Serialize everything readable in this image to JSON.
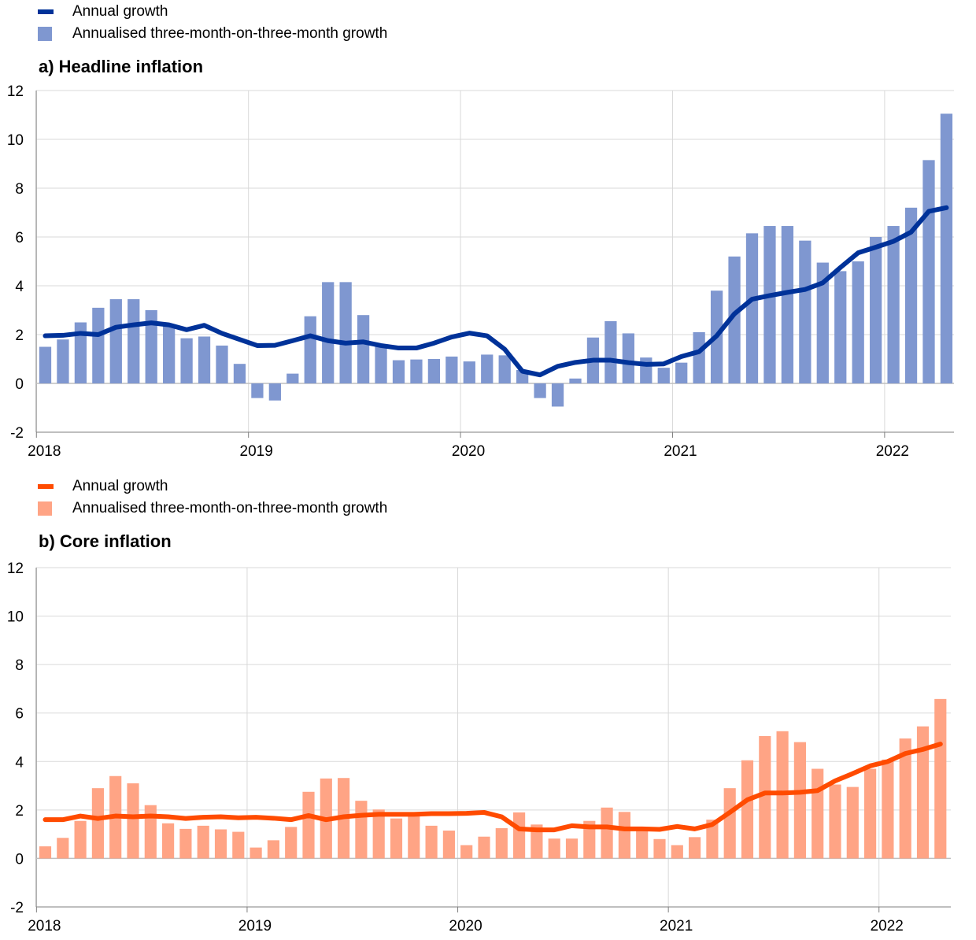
{
  "colors": {
    "headline_line": "#003299",
    "headline_bar": "#7f97d0",
    "core_line": "#ff4b00",
    "core_bar": "#ffa485",
    "grid": "#d9d9d9"
  },
  "chart_data": [
    {
      "type": "bar+line",
      "title": "a) Headline inflation",
      "legend": [
        "Annual growth",
        "Annualised three-month-on-three-month growth"
      ],
      "x_tick_labels": [
        "2018",
        "2019",
        "2020",
        "2021",
        "2022"
      ],
      "ylim": [
        -2,
        12
      ],
      "y_ticks": [
        -2,
        0,
        2,
        4,
        6,
        8,
        10,
        12
      ],
      "grid": true,
      "start_month": "2018-01",
      "series": [
        {
          "name": "Annual growth",
          "type": "line",
          "values": [
            1.95,
            1.97,
            2.05,
            2.0,
            2.3,
            2.4,
            2.48,
            2.4,
            2.2,
            2.38,
            2.05,
            1.8,
            1.55,
            1.56,
            1.75,
            1.95,
            1.75,
            1.65,
            1.7,
            1.55,
            1.45,
            1.45,
            1.65,
            1.9,
            2.06,
            1.95,
            1.4,
            0.5,
            0.35,
            0.7,
            0.86,
            0.95,
            0.95,
            0.85,
            0.78,
            0.8,
            1.1,
            1.3,
            1.95,
            2.85,
            3.45,
            3.6,
            3.73,
            3.85,
            4.12,
            4.75,
            5.35,
            5.58,
            5.82,
            6.2,
            7.05,
            7.2
          ]
        },
        {
          "name": "Annualised three-month-on-three-month growth",
          "type": "bar",
          "values": [
            1.5,
            1.8,
            2.5,
            3.1,
            3.45,
            3.45,
            3.0,
            2.35,
            1.85,
            1.92,
            1.55,
            0.8,
            -0.6,
            -0.7,
            0.4,
            2.75,
            4.15,
            4.15,
            2.8,
            1.5,
            0.95,
            0.98,
            1.0,
            1.1,
            0.9,
            1.18,
            1.15,
            0.55,
            -0.6,
            -0.95,
            0.2,
            1.88,
            2.55,
            2.05,
            1.06,
            0.64,
            0.85,
            2.1,
            3.8,
            5.2,
            6.15,
            6.45,
            6.45,
            5.85,
            4.95,
            4.6,
            5.0,
            6.0,
            6.45,
            7.2,
            9.15,
            11.05
          ]
        }
      ]
    },
    {
      "type": "bar+line",
      "title": "b) Core inflation",
      "legend": [
        "Annual growth",
        "Annualised three-month-on-three-month growth"
      ],
      "x_tick_labels": [
        "2018",
        "2019",
        "2020",
        "2021",
        "2022"
      ],
      "ylim": [
        -2,
        12
      ],
      "y_ticks": [
        -2,
        0,
        2,
        4,
        6,
        8,
        10,
        12
      ],
      "grid": true,
      "start_month": "2018-01",
      "series": [
        {
          "name": "Annual growth",
          "type": "line",
          "values": [
            1.6,
            1.6,
            1.75,
            1.65,
            1.75,
            1.72,
            1.75,
            1.72,
            1.65,
            1.7,
            1.72,
            1.68,
            1.7,
            1.66,
            1.6,
            1.77,
            1.6,
            1.72,
            1.78,
            1.82,
            1.82,
            1.82,
            1.85,
            1.85,
            1.86,
            1.9,
            1.72,
            1.22,
            1.18,
            1.18,
            1.35,
            1.3,
            1.3,
            1.22,
            1.22,
            1.2,
            1.32,
            1.22,
            1.4,
            1.9,
            2.42,
            2.7,
            2.7,
            2.73,
            2.8,
            3.2,
            3.5,
            3.82,
            4.0,
            4.33,
            4.5,
            4.72
          ]
        },
        {
          "name": "Annualised three-month-on-three-month growth",
          "type": "bar",
          "values": [
            0.5,
            0.85,
            1.55,
            2.9,
            3.4,
            3.1,
            2.2,
            1.45,
            1.22,
            1.35,
            1.2,
            1.1,
            0.45,
            0.75,
            1.3,
            2.75,
            3.3,
            3.32,
            2.38,
            2.02,
            1.65,
            1.8,
            1.35,
            1.15,
            0.55,
            0.9,
            1.25,
            1.9,
            1.4,
            0.82,
            0.82,
            1.55,
            2.1,
            1.92,
            1.2,
            0.8,
            0.55,
            0.88,
            1.6,
            2.9,
            4.05,
            5.05,
            5.25,
            4.8,
            3.7,
            3.05,
            2.95,
            3.7,
            4.08,
            4.95,
            5.45,
            6.58
          ]
        }
      ]
    }
  ]
}
